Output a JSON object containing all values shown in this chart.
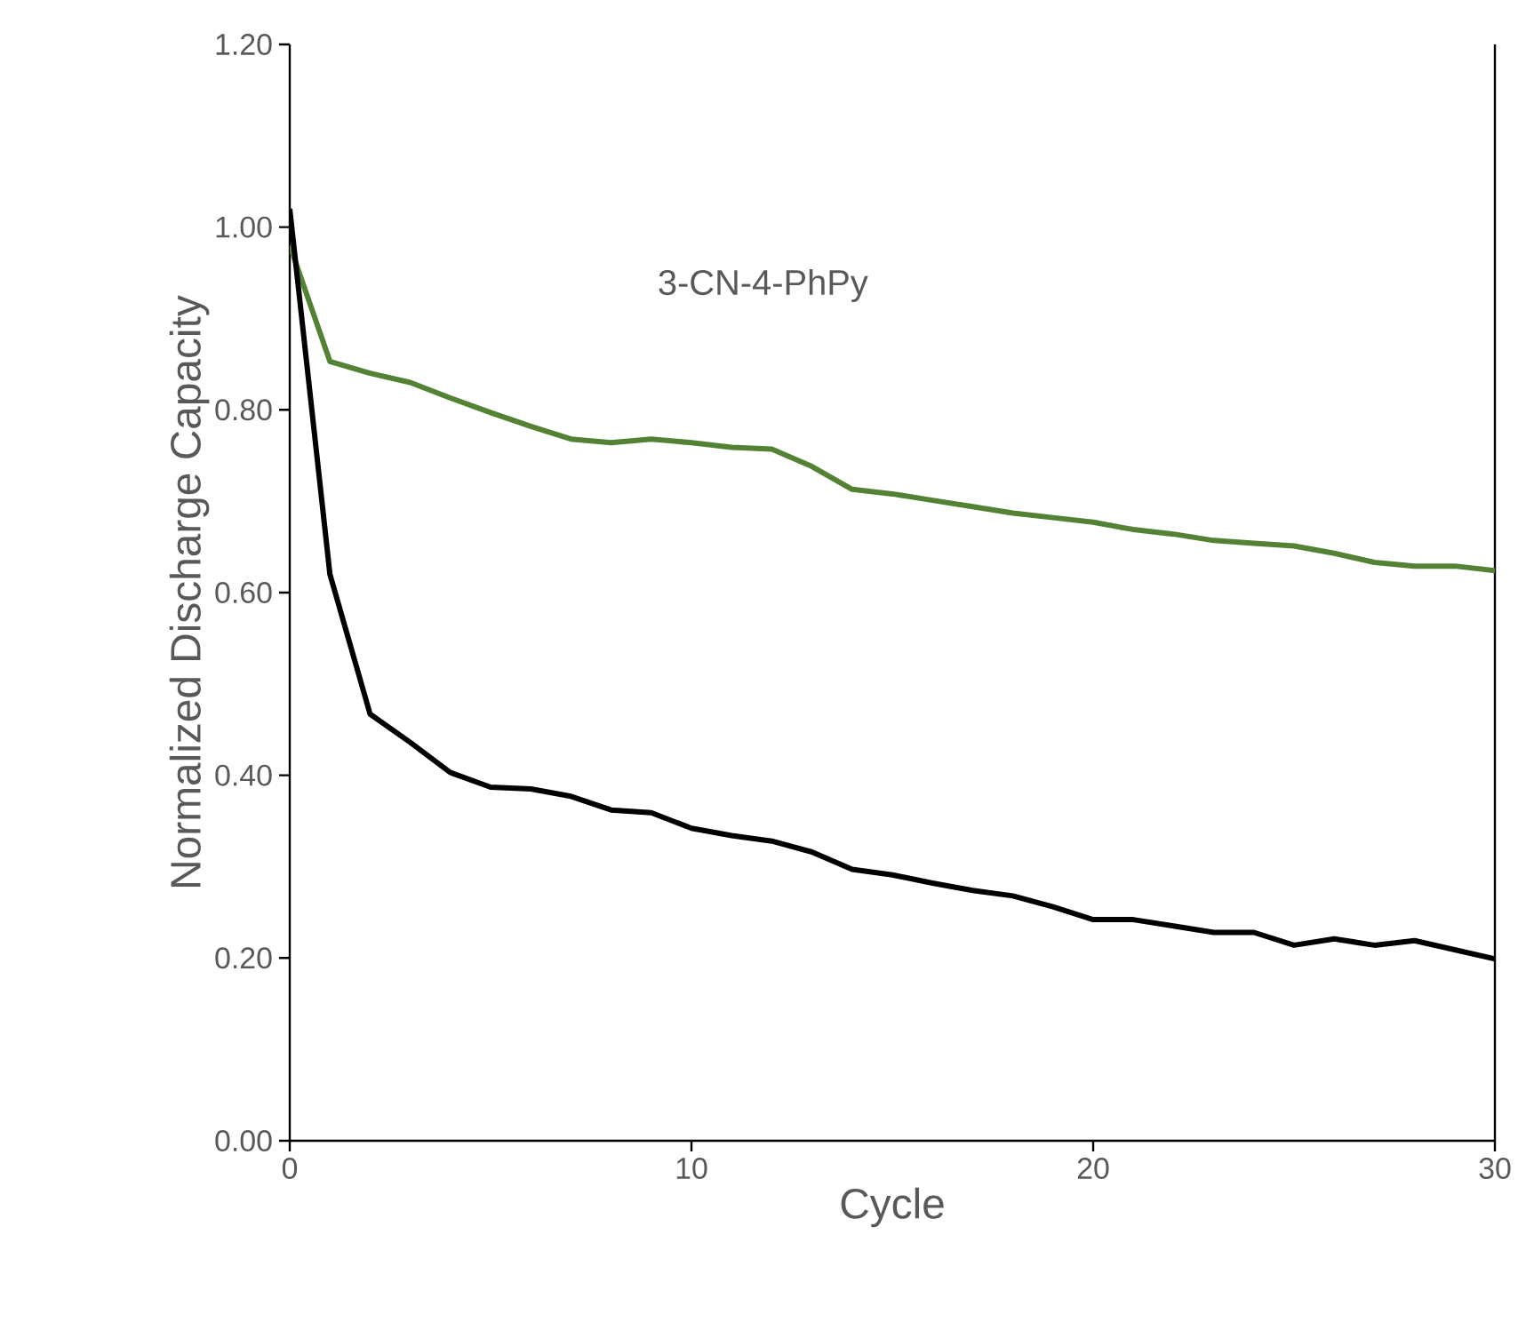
{
  "chart_data": {
    "type": "line",
    "xlabel": "Cycle",
    "ylabel": "Normalized Discharge Capacity",
    "annotations": [
      "3-CN-4-PhPy"
    ],
    "x": [
      0,
      1,
      2,
      3,
      4,
      5,
      6,
      7,
      8,
      9,
      10,
      11,
      12,
      13,
      14,
      15,
      16,
      17,
      18,
      19,
      20,
      21,
      22,
      23,
      24,
      25,
      26,
      27,
      28,
      29,
      30
    ],
    "series": [
      {
        "color": "#548235",
        "values": [
          0.98,
          0.853,
          0.84,
          0.83,
          0.813,
          0.797,
          0.782,
          0.768,
          0.764,
          0.768,
          0.764,
          0.759,
          0.757,
          0.738,
          0.713,
          0.708,
          0.701,
          0.694,
          0.687,
          0.682,
          0.677,
          0.669,
          0.664,
          0.657,
          0.654,
          0.651,
          0.643,
          0.633,
          0.629,
          0.629,
          0.624
        ]
      },
      {
        "color": "#000000",
        "values": [
          1.02,
          0.62,
          0.467,
          0.436,
          0.403,
          0.387,
          0.385,
          0.377,
          0.362,
          0.359,
          0.342,
          0.334,
          0.328,
          0.316,
          0.297,
          0.291,
          0.282,
          0.274,
          0.268,
          0.256,
          0.242,
          0.242,
          0.235,
          0.228,
          0.228,
          0.214,
          0.221,
          0.214,
          0.219,
          0.209,
          0.199
        ]
      }
    ],
    "xlim": [
      0,
      30
    ],
    "xticks": [
      0,
      10,
      20,
      30
    ],
    "ylim": [
      0,
      1.2
    ],
    "yticks": [
      {
        "value": 0,
        "label": "0.00"
      },
      {
        "value": 0.2,
        "label": "0.20"
      },
      {
        "value": 0.4,
        "label": "0.40"
      },
      {
        "value": 0.6,
        "label": "0.60"
      },
      {
        "value": 0.8,
        "label": "0.80"
      },
      {
        "value": 1.0,
        "label": "1.00"
      },
      {
        "value": 1.2,
        "label": "1.20"
      }
    ],
    "grid": false,
    "marker": "none",
    "line_style": "solid"
  }
}
